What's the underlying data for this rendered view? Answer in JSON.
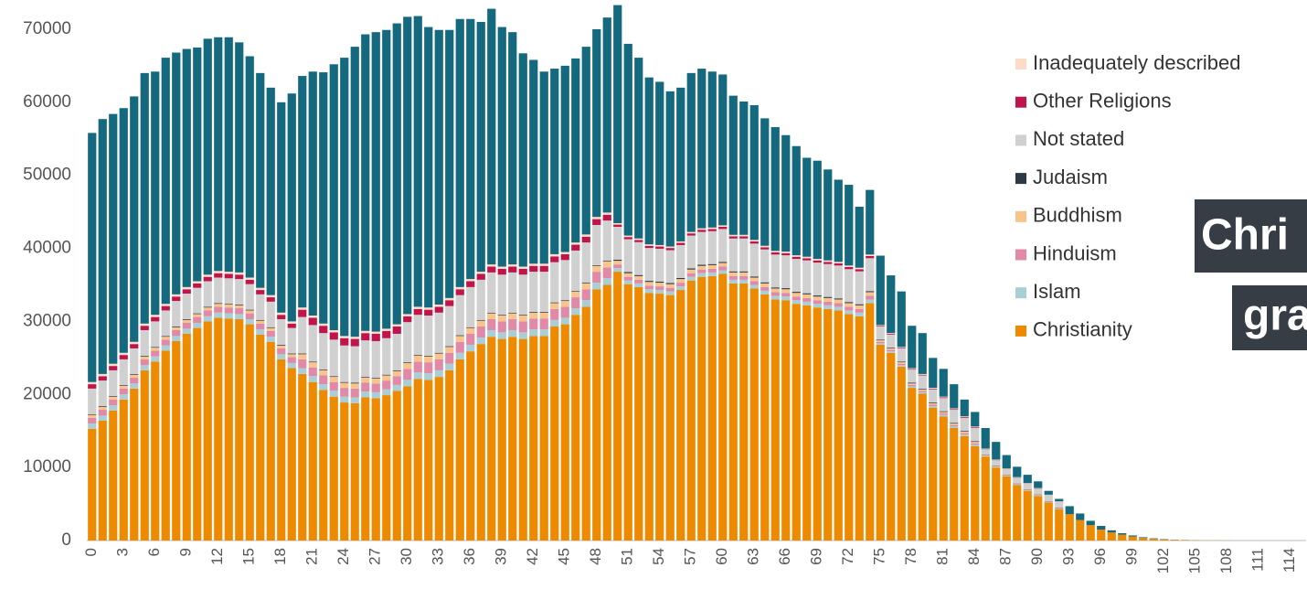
{
  "chart_data": {
    "type": "stacked_bar",
    "categories": [
      "0",
      null,
      null,
      "3",
      null,
      null,
      "6",
      null,
      null,
      "9",
      null,
      null,
      "12",
      null,
      null,
      "15",
      null,
      null,
      "18",
      null,
      null,
      "21",
      null,
      null,
      "24",
      null,
      null,
      "27",
      null,
      null,
      "30",
      null,
      null,
      "33",
      null,
      null,
      "36",
      null,
      null,
      "39",
      null,
      null,
      "42",
      null,
      null,
      "45",
      null,
      null,
      "48",
      null,
      null,
      "51",
      null,
      null,
      "54",
      null,
      null,
      "57",
      null,
      null,
      "60",
      null,
      null,
      "63",
      null,
      null,
      "66",
      null,
      null,
      "69",
      null,
      null,
      "72",
      null,
      null,
      "75",
      null,
      null,
      "78",
      null,
      null,
      "81",
      null,
      null,
      "84",
      null,
      null,
      "87",
      null,
      null,
      "90",
      null,
      null,
      "93",
      null,
      null,
      "96",
      null,
      null,
      "99",
      null,
      null,
      "102",
      null,
      null,
      "105",
      null,
      null,
      "108",
      null,
      null,
      "111",
      null,
      null,
      "114",
      null
    ],
    "series": [
      {
        "name": "Christianity",
        "color": "#ee8a00",
        "values": [
          15300,
          16400,
          17800,
          19300,
          20800,
          23300,
          24500,
          26000,
          27300,
          28300,
          29100,
          30000,
          30500,
          30400,
          30300,
          29600,
          28200,
          27200,
          24800,
          23600,
          22800,
          21700,
          20600,
          19700,
          18900,
          18800,
          19600,
          19500,
          19900,
          20500,
          21100,
          22100,
          22000,
          22400,
          23300,
          24800,
          25900,
          26900,
          27900,
          27600,
          27900,
          27600,
          28000,
          28000,
          29300,
          29600,
          30900,
          32000,
          34400,
          35000,
          36800,
          35100,
          34700,
          33900,
          33800,
          33600,
          34300,
          35600,
          36100,
          36200,
          36500,
          35200,
          35200,
          34500,
          33700,
          33000,
          32900,
          32400,
          32200,
          31900,
          31700,
          31500,
          31000,
          30700,
          32500,
          26800,
          25700,
          23800,
          20900,
          20100,
          18200,
          17000,
          15400,
          14300,
          12900,
          11500,
          10000,
          8800,
          7600,
          6800,
          6100,
          5200,
          4300,
          3600,
          2800,
          2100,
          1500,
          1100,
          800,
          550,
          350,
          240,
          160,
          100,
          65,
          40,
          25,
          18,
          12,
          8,
          5,
          3,
          2,
          1,
          1,
          0
        ]
      },
      {
        "name": "Islam",
        "color": "#a8cfd6",
        "values": [
          700,
          700,
          700,
          700,
          700,
          700,
          700,
          700,
          700,
          700,
          700,
          700,
          700,
          700,
          700,
          700,
          700,
          700,
          700,
          700,
          800,
          800,
          800,
          800,
          800,
          800,
          800,
          800,
          800,
          800,
          900,
          900,
          900,
          900,
          900,
          900,
          900,
          900,
          900,
          900,
          900,
          900,
          900,
          900,
          900,
          900,
          900,
          900,
          900,
          900,
          500,
          500,
          500,
          500,
          500,
          500,
          500,
          500,
          500,
          500,
          500,
          500,
          500,
          500,
          500,
          500,
          500,
          500,
          500,
          500,
          500,
          500,
          500,
          500,
          500,
          200,
          200,
          200,
          200,
          200,
          200,
          200,
          200,
          200,
          200,
          50,
          50,
          50,
          50,
          50,
          50,
          50,
          50,
          0,
          0,
          0,
          0,
          0,
          0,
          0,
          0,
          0,
          0,
          0,
          0,
          0,
          0,
          0,
          0,
          0,
          0,
          0,
          0,
          0,
          0,
          0
        ]
      },
      {
        "name": "Hinduism",
        "color": "#e08aa8",
        "values": [
          800,
          800,
          800,
          800,
          800,
          800,
          800,
          800,
          800,
          800,
          800,
          800,
          800,
          800,
          800,
          800,
          800,
          800,
          800,
          800,
          1200,
          1200,
          1200,
          1200,
          1200,
          1200,
          1200,
          1200,
          1200,
          1200,
          1500,
          1500,
          1500,
          1500,
          1500,
          1500,
          1500,
          1500,
          1500,
          1500,
          1500,
          1500,
          1500,
          1500,
          1500,
          1500,
          1500,
          1500,
          1500,
          1500,
          500,
          500,
          500,
          500,
          500,
          500,
          500,
          500,
          500,
          500,
          500,
          500,
          500,
          500,
          500,
          500,
          500,
          500,
          500,
          500,
          500,
          500,
          500,
          500,
          500,
          200,
          200,
          200,
          200,
          200,
          200,
          200,
          200,
          200,
          200,
          50,
          50,
          50,
          50,
          50,
          50,
          50,
          50,
          0,
          0,
          0,
          0,
          0,
          0,
          0,
          0,
          0,
          0,
          0,
          0,
          0,
          0,
          0,
          0,
          0,
          0,
          0,
          0,
          0,
          0,
          0
        ]
      },
      {
        "name": "Buddhism",
        "color": "#f9c38c",
        "values": [
          400,
          400,
          400,
          400,
          400,
          400,
          400,
          400,
          400,
          400,
          400,
          400,
          400,
          400,
          400,
          400,
          400,
          400,
          400,
          400,
          700,
          700,
          700,
          700,
          700,
          700,
          700,
          700,
          700,
          700,
          800,
          800,
          800,
          800,
          800,
          800,
          800,
          800,
          800,
          800,
          800,
          800,
          800,
          800,
          800,
          800,
          800,
          800,
          800,
          800,
          500,
          500,
          500,
          500,
          500,
          500,
          500,
          500,
          500,
          500,
          500,
          500,
          500,
          500,
          500,
          500,
          500,
          500,
          500,
          500,
          500,
          500,
          500,
          500,
          500,
          200,
          200,
          200,
          200,
          200,
          200,
          200,
          200,
          200,
          200,
          50,
          50,
          50,
          50,
          50,
          50,
          50,
          50,
          0,
          0,
          0,
          0,
          0,
          0,
          0,
          0,
          0,
          0,
          0,
          0,
          0,
          0,
          0,
          0,
          0,
          0,
          0,
          0,
          0,
          0,
          0
        ]
      },
      {
        "name": "Judaism",
        "color": "#2d3a44",
        "values": [
          100,
          100,
          100,
          100,
          100,
          100,
          100,
          100,
          100,
          100,
          100,
          100,
          100,
          100,
          100,
          100,
          100,
          100,
          100,
          100,
          100,
          100,
          100,
          100,
          100,
          100,
          100,
          100,
          100,
          100,
          100,
          100,
          100,
          100,
          100,
          100,
          100,
          100,
          100,
          100,
          100,
          100,
          100,
          100,
          100,
          100,
          100,
          100,
          100,
          100,
          150,
          150,
          150,
          150,
          150,
          150,
          150,
          150,
          150,
          150,
          150,
          150,
          150,
          150,
          150,
          150,
          150,
          150,
          150,
          150,
          150,
          150,
          150,
          150,
          150,
          100,
          100,
          100,
          100,
          100,
          100,
          100,
          100,
          100,
          100,
          50,
          50,
          50,
          50,
          50,
          50,
          50,
          50,
          0,
          0,
          0,
          0,
          0,
          0,
          0,
          0,
          0,
          0,
          0,
          0,
          0,
          0,
          0,
          0,
          0,
          0,
          0,
          0,
          0,
          0,
          0
        ]
      },
      {
        "name": "Not stated",
        "color": "#d0d0d0",
        "values": [
          3500,
          3500,
          3500,
          3500,
          3500,
          3500,
          3500,
          3500,
          3500,
          3500,
          3500,
          3500,
          3500,
          3500,
          3500,
          3500,
          3500,
          3500,
          3500,
          3500,
          5000,
          5000,
          5000,
          5000,
          5000,
          5000,
          5000,
          5000,
          5000,
          5000,
          5500,
          5500,
          5500,
          5500,
          5500,
          5500,
          5500,
          5500,
          5500,
          5500,
          5500,
          5500,
          5500,
          5500,
          5500,
          5500,
          5500,
          5500,
          5500,
          5500,
          4500,
          4500,
          4500,
          4500,
          4500,
          4500,
          4500,
          4500,
          4500,
          4500,
          4500,
          4500,
          4500,
          4500,
          4500,
          4500,
          4500,
          4500,
          4500,
          4500,
          4500,
          4500,
          4500,
          4500,
          4500,
          1800,
          1800,
          1800,
          1800,
          1800,
          1800,
          1800,
          1800,
          1800,
          1800,
          800,
          800,
          800,
          800,
          800,
          800,
          800,
          800,
          0,
          0,
          0,
          0,
          0,
          0,
          0,
          0,
          0,
          0,
          0,
          0,
          0,
          0,
          0,
          0,
          0,
          0,
          0,
          0,
          0,
          0,
          0
        ]
      },
      {
        "name": "Other Religions",
        "color": "#c0154a",
        "values": [
          600,
          600,
          600,
          600,
          600,
          600,
          600,
          600,
          600,
          600,
          600,
          600,
          600,
          600,
          600,
          600,
          600,
          600,
          600,
          600,
          1000,
          1000,
          1000,
          1000,
          1000,
          1000,
          1000,
          1000,
          1000,
          1000,
          800,
          800,
          800,
          800,
          800,
          800,
          800,
          800,
          800,
          800,
          800,
          800,
          800,
          800,
          800,
          800,
          800,
          800,
          800,
          800,
          300,
          300,
          300,
          300,
          300,
          300,
          300,
          300,
          300,
          300,
          300,
          300,
          300,
          300,
          300,
          300,
          300,
          300,
          300,
          300,
          300,
          300,
          300,
          300,
          300,
          100,
          100,
          100,
          100,
          100,
          100,
          100,
          100,
          100,
          100,
          30,
          30,
          30,
          30,
          30,
          30,
          30,
          30,
          0,
          0,
          0,
          0,
          0,
          0,
          0,
          0,
          0,
          0,
          0,
          0,
          0,
          0,
          0,
          0,
          0,
          0,
          0,
          0,
          0,
          0,
          0
        ]
      },
      {
        "name": "Inadequately described",
        "color": "#fcdcc8",
        "values": [
          300,
          300,
          300,
          300,
          300,
          300,
          300,
          300,
          300,
          300,
          300,
          300,
          300,
          300,
          300,
          300,
          300,
          300,
          300,
          300,
          300,
          300,
          300,
          300,
          300,
          300,
          300,
          300,
          300,
          300,
          300,
          300,
          300,
          300,
          300,
          300,
          300,
          300,
          300,
          300,
          300,
          300,
          300,
          300,
          300,
          300,
          300,
          300,
          300,
          300,
          200,
          200,
          200,
          200,
          200,
          200,
          200,
          200,
          200,
          200,
          200,
          200,
          200,
          200,
          200,
          200,
          200,
          200,
          200,
          200,
          200,
          200,
          200,
          200,
          200,
          100,
          100,
          100,
          100,
          100,
          100,
          100,
          100,
          100,
          100,
          50,
          50,
          50,
          50,
          50,
          50,
          50,
          50,
          0,
          0,
          0,
          0,
          0,
          0,
          0,
          0,
          0,
          0,
          0,
          0,
          0,
          0,
          0,
          0,
          0,
          0,
          0,
          0,
          0,
          0,
          0
        ]
      },
      {
        "color": "#14697e",
        "values": [
          34100,
          34900,
          34200,
          33500,
          33600,
          34300,
          33300,
          33700,
          33100,
          32600,
          32000,
          32300,
          32000,
          32100,
          31500,
          30300,
          29400,
          28400,
          28800,
          31200,
          31700,
          33400,
          34400,
          36400,
          38100,
          39700,
          40600,
          41000,
          40900,
          41200,
          40700,
          39800,
          38400,
          37600,
          36700,
          36700,
          35600,
          34200,
          35000,
          32800,
          31800,
          29200,
          27900,
          26300,
          25400,
          25500,
          25200,
          25700,
          25700,
          26700,
          29850,
          26250,
          24750,
          22850,
          22350,
          21250,
          21050,
          21750,
          21850,
          21350,
          20650,
          19050,
          18250,
          18450,
          17450,
          16950,
          15950,
          14950,
          13550,
          13450,
          12450,
          11250,
          11050,
          8350,
          8850,
          9500,
          7900,
          7600,
          5800,
          5600,
          4100,
          3800,
          3300,
          2300,
          2000,
          2820,
          2420,
          1820,
          1420,
          1120,
          920,
          520,
          320,
          1100,
          900,
          600,
          500,
          300,
          200,
          150,
          100,
          60,
          40,
          20,
          15,
          10,
          5,
          4,
          3,
          2,
          1,
          1,
          0,
          0,
          0,
          0
        ]
      }
    ],
    "ylim": [
      0,
      74000
    ],
    "yticks": [
      0,
      10000,
      20000,
      30000,
      40000,
      50000,
      60000,
      70000
    ],
    "grid": false,
    "legend": "right",
    "annotations": [
      "Chri",
      "gra"
    ]
  }
}
